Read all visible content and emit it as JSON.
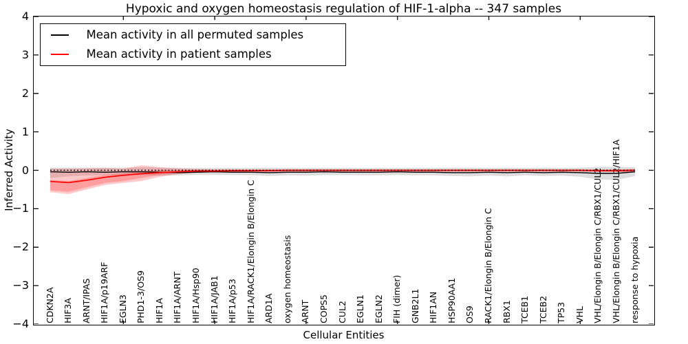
{
  "title": "Hypoxic and oxygen homeostasis regulation of HIF-1-alpha -- 347 samples",
  "axes": {
    "ylabel": "Inferred Activity",
    "xlabel": "Cellular Entities"
  },
  "legend": {
    "position": "upper left"
  },
  "chart_data": {
    "type": "line",
    "title": "Hypoxic and oxygen homeostasis regulation of HIF-1-alpha -- 347 samples",
    "xlabel": "Cellular Entities",
    "ylabel": "Inferred Activity",
    "ylim": [
      -4,
      4
    ],
    "yticks": [
      4,
      3,
      2,
      1,
      0,
      -1,
      -2,
      -3,
      -4
    ],
    "x_tick_indices": [
      4,
      9,
      14,
      19,
      24,
      29
    ],
    "grid": false,
    "zero_line": true,
    "legend_position": "upper left",
    "categories": [
      "CDKN2A",
      "HIF3A",
      "ARNT/IPAS",
      "HIF1A/p19ARF",
      "EGLN3",
      "PHD1-3/OS9",
      "HIF1A",
      "HIF1A/ARNT",
      "HIF1A/Hsp90",
      "HIF1A/JAB1",
      "HIF1A/p53",
      "HIF1A/RACK1/Elongin B/Elongin C",
      "ARD1A",
      "oxygen homeostasis",
      "ARNT",
      "COPS5",
      "CUL2",
      "EGLN1",
      "EGLN2",
      "FIH (dimer)",
      "GNB2L1",
      "HIF1AN",
      "HSP90AA1",
      "OS9",
      "RACK1/Elongin B/Elongin C",
      "RBX1",
      "TCEB1",
      "TCEB2",
      "TP53",
      "VHL",
      "VHL/Elongin B/Elongin C/RBX1/CUL2",
      "VHL/Elongin B/Elongin C/RBX1/CUL2/HIF1A",
      "response to hypoxia"
    ],
    "series": [
      {
        "name": "Mean activity in all permuted samples",
        "color": "#000000",
        "width": 1.4,
        "values": [
          -0.04,
          -0.05,
          -0.04,
          -0.05,
          -0.04,
          -0.04,
          -0.05,
          -0.06,
          -0.05,
          -0.04,
          -0.05,
          -0.05,
          -0.06,
          -0.05,
          -0.05,
          -0.04,
          -0.05,
          -0.05,
          -0.05,
          -0.04,
          -0.05,
          -0.05,
          -0.06,
          -0.06,
          -0.05,
          -0.06,
          -0.05,
          -0.06,
          -0.05,
          -0.06,
          -0.08,
          -0.08,
          -0.04
        ]
      },
      {
        "name": "Mean activity in patient samples",
        "color": "#ff0000",
        "width": 1.7,
        "values": [
          -0.29,
          -0.32,
          -0.26,
          -0.18,
          -0.13,
          -0.09,
          -0.06,
          -0.04,
          -0.02,
          -0.02,
          -0.01,
          -0.01,
          -0.01,
          0.0,
          0.0,
          0.0,
          0.0,
          0.0,
          0.0,
          0.0,
          0.0,
          0.0,
          0.0,
          0.0,
          0.0,
          0.0,
          0.0,
          0.0,
          0.0,
          0.0,
          -0.01,
          -0.01,
          0.0
        ]
      }
    ],
    "bands": [
      {
        "name": "permuted-samples-range",
        "color": "rgba(0,0,0,0.13)",
        "low": [
          -0.2,
          -0.16,
          -0.14,
          -0.13,
          -0.12,
          -0.12,
          -0.14,
          -0.13,
          -0.12,
          -0.12,
          -0.12,
          -0.13,
          -0.15,
          -0.13,
          -0.14,
          -0.12,
          -0.12,
          -0.13,
          -0.13,
          -0.12,
          -0.13,
          -0.13,
          -0.15,
          -0.16,
          -0.14,
          -0.16,
          -0.13,
          -0.15,
          -0.14,
          -0.17,
          -0.24,
          -0.25,
          -0.15
        ],
        "high": [
          0.07,
          0.07,
          0.07,
          0.07,
          0.07,
          0.08,
          0.07,
          0.06,
          0.06,
          0.06,
          0.06,
          0.06,
          0.07,
          0.06,
          0.06,
          0.06,
          0.06,
          0.06,
          0.06,
          0.06,
          0.06,
          0.06,
          0.07,
          0.07,
          0.06,
          0.07,
          0.06,
          0.07,
          0.06,
          0.07,
          0.09,
          0.09,
          0.08
        ]
      },
      {
        "name": "patient-samples-range-outer",
        "color": "rgba(255,0,0,0.21)",
        "low": [
          -0.57,
          -0.62,
          -0.5,
          -0.38,
          -0.33,
          -0.28,
          -0.17,
          -0.1,
          -0.06,
          -0.05,
          -0.04,
          -0.04,
          -0.04,
          -0.03,
          -0.03,
          -0.03,
          -0.03,
          -0.03,
          -0.03,
          -0.03,
          -0.03,
          -0.03,
          -0.03,
          -0.03,
          -0.03,
          -0.03,
          -0.03,
          -0.03,
          -0.03,
          -0.03,
          -0.04,
          -0.04,
          -0.05
        ],
        "high": [
          0.04,
          0.04,
          0.05,
          0.06,
          0.04,
          0.13,
          0.08,
          0.05,
          0.03,
          0.02,
          0.02,
          0.02,
          0.02,
          0.02,
          0.02,
          0.02,
          0.02,
          0.02,
          0.02,
          0.02,
          0.02,
          0.02,
          0.02,
          0.02,
          0.02,
          0.02,
          0.02,
          0.02,
          0.02,
          0.02,
          0.02,
          0.02,
          0.03
        ]
      },
      {
        "name": "patient-samples-range-inner",
        "color": "rgba(255,0,0,0.21)",
        "low": [
          -0.52,
          -0.56,
          -0.44,
          -0.33,
          -0.28,
          -0.2,
          -0.12,
          -0.07,
          -0.05,
          -0.04,
          -0.04,
          -0.03,
          -0.03,
          -0.03,
          -0.03,
          -0.03,
          -0.03,
          -0.03,
          -0.03,
          -0.03,
          -0.03,
          -0.03,
          -0.03,
          -0.03,
          -0.03,
          -0.03,
          -0.03,
          -0.03,
          -0.03,
          -0.03,
          -0.04,
          -0.04,
          -0.05
        ],
        "high": [
          -0.25,
          -0.28,
          -0.2,
          -0.12,
          -0.08,
          -0.03,
          0.0,
          0.01,
          0.02,
          0.02,
          0.02,
          0.02,
          0.02,
          0.02,
          0.02,
          0.02,
          0.02,
          0.02,
          0.02,
          0.02,
          0.02,
          0.02,
          0.02,
          0.02,
          0.02,
          0.02,
          0.02,
          0.02,
          0.02,
          0.02,
          0.02,
          0.02,
          0.03
        ]
      }
    ]
  }
}
